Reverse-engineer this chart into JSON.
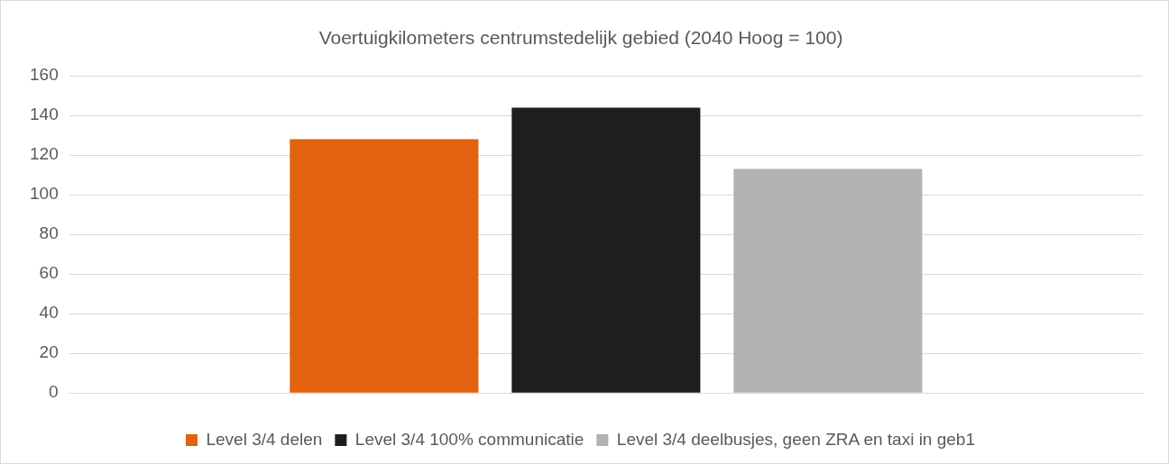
{
  "chart_data": {
    "type": "bar",
    "title": "Voertuigkilometers centrumstedelijk gebied (2040 Hoog = 100)",
    "categories": [
      null
    ],
    "series": [
      {
        "name": "Level 3/4 delen",
        "color": "#e36210",
        "values": [
          128
        ]
      },
      {
        "name": "Level 3/4 100% communicatie",
        "color": "#1e1e1e",
        "values": [
          144
        ]
      },
      {
        "name": "Level 3/4 deelbusjes, geen ZRA en taxi in geb1",
        "color": "#b2b2b2",
        "values": [
          113
        ]
      }
    ],
    "ylim": [
      0,
      160
    ],
    "yticks": [
      0,
      20,
      40,
      60,
      80,
      100,
      120,
      140,
      160
    ],
    "grid": "y",
    "legend": "bottom"
  }
}
